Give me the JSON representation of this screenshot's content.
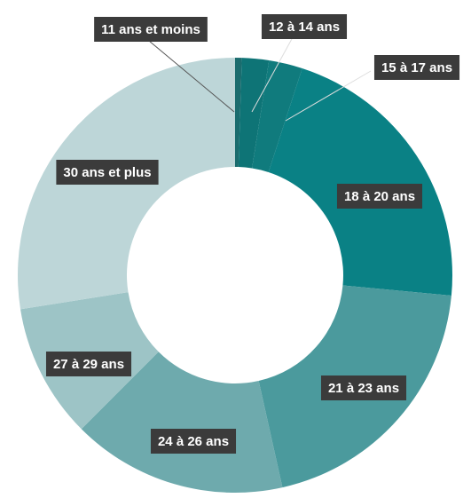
{
  "chart_data": {
    "type": "donut",
    "categories": [
      "11 ans et moins",
      "12 à 14 ans",
      "15 à 17 ans",
      "18 à 20 ans",
      "21 à 23 ans",
      "24 à 26 ans",
      "27 à 29 ans",
      "30 ans et plus"
    ],
    "values": [
      0.5,
      2,
      2.5,
      21.5,
      20,
      16,
      10,
      27.5
    ],
    "colors": [
      "#1b6c6e",
      "#0e7476",
      "#107b7d",
      "#0a8185",
      "#4b9a9d",
      "#6eaaad",
      "#9dc4c6",
      "#bdd6d8"
    ]
  }
}
